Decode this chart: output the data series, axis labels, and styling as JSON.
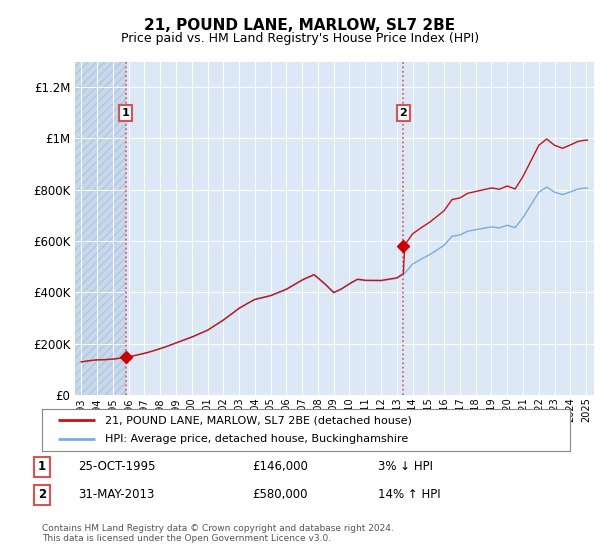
{
  "title": "21, POUND LANE, MARLOW, SL7 2BE",
  "subtitle": "Price paid vs. HM Land Registry's House Price Index (HPI)",
  "ylim": [
    0,
    1300000
  ],
  "yticks": [
    0,
    200000,
    400000,
    600000,
    800000,
    1000000,
    1200000
  ],
  "ytick_labels": [
    "£0",
    "£200K",
    "£400K",
    "£600K",
    "£800K",
    "£1M",
    "£1.2M"
  ],
  "background_color": "#ffffff",
  "plot_bg_color": "#dce8f5",
  "hatch_color": "#b0c8e0",
  "hatch_bg_color": "#c8d8ea",
  "title_fontsize": 11,
  "subtitle_fontsize": 9,
  "purchase1": {
    "date": 1995.82,
    "price": 146000,
    "label": "1"
  },
  "purchase2": {
    "date": 2013.42,
    "price": 580000,
    "label": "2"
  },
  "vline_color": "#e05050",
  "sale_marker_color": "#cc0000",
  "hpi_line_color": "#7aacdc",
  "price_line_color": "#cc1111",
  "legend_entry1": "21, POUND LANE, MARLOW, SL7 2BE (detached house)",
  "legend_entry2": "HPI: Average price, detached house, Buckinghamshire",
  "table_rows": [
    {
      "num": "1",
      "date": "25-OCT-1995",
      "price": "£146,000",
      "pct": "3% ↓ HPI"
    },
    {
      "num": "2",
      "date": "31-MAY-2013",
      "price": "£580,000",
      "pct": "14% ↑ HPI"
    }
  ],
  "footer": "Contains HM Land Registry data © Crown copyright and database right 2024.\nThis data is licensed under the Open Government Licence v3.0.",
  "xmin": 1992.6,
  "xmax": 2025.5,
  "xtick_years": [
    1993,
    1994,
    1995,
    1996,
    1997,
    1998,
    1999,
    2000,
    2001,
    2002,
    2003,
    2004,
    2005,
    2006,
    2007,
    2008,
    2009,
    2010,
    2011,
    2012,
    2013,
    2014,
    2015,
    2016,
    2017,
    2018,
    2019,
    2020,
    2021,
    2022,
    2023,
    2024,
    2025
  ],
  "hatch_xmax": 1995.82
}
